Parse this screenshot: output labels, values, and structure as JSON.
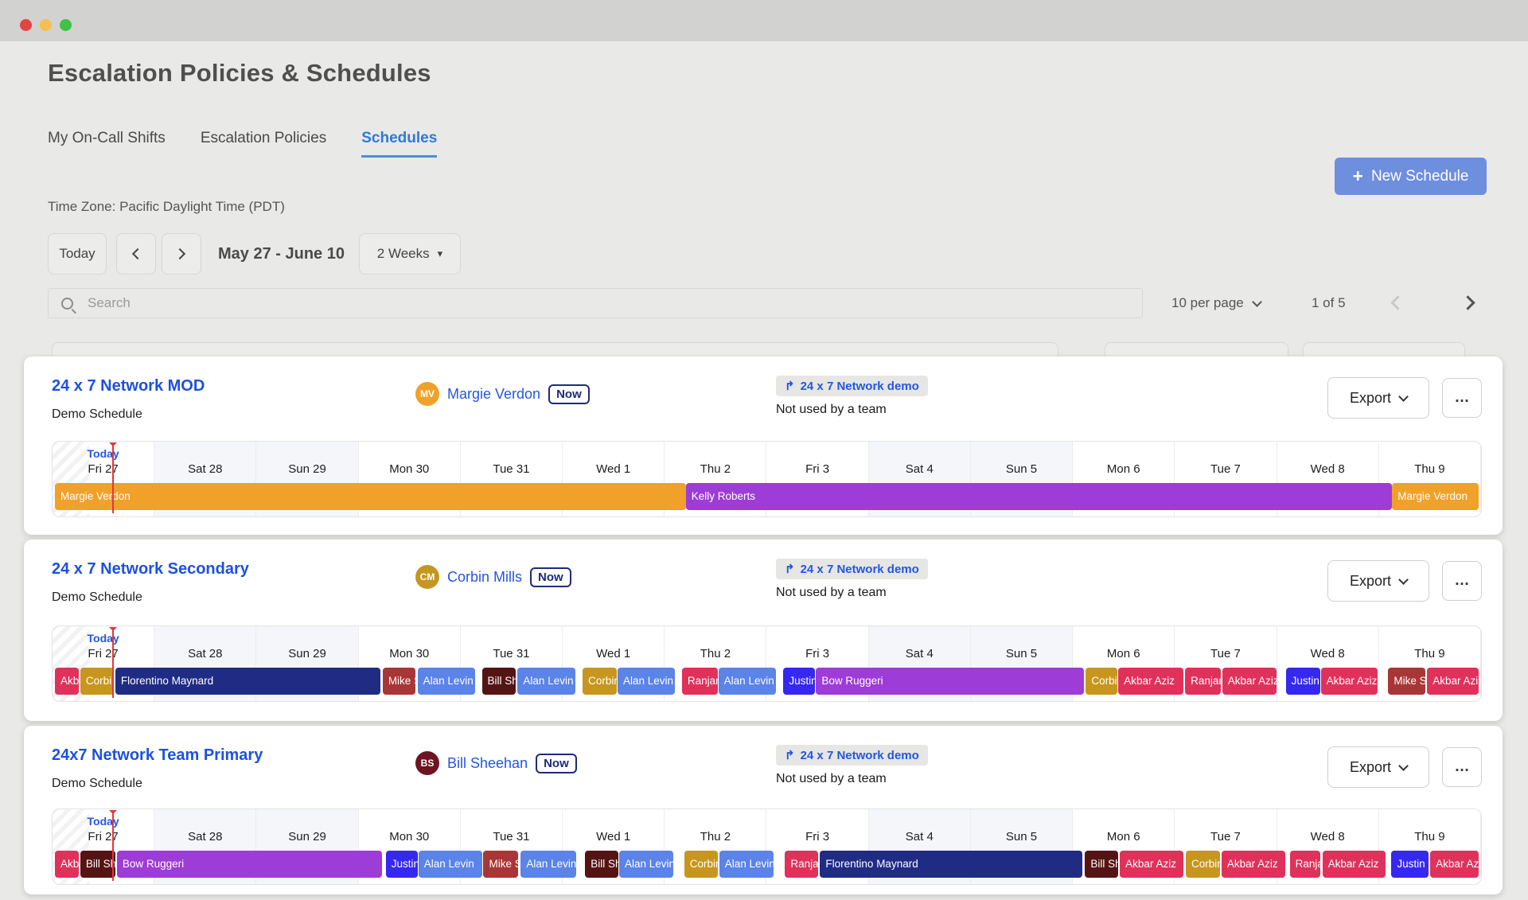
{
  "window": {
    "traffic_lights": [
      "#df4643",
      "#f6bf4f",
      "#3fc246"
    ]
  },
  "header": {
    "title": "Escalation Policies & Schedules"
  },
  "tabs": [
    {
      "label": "My On-Call Shifts",
      "active": false
    },
    {
      "label": "Escalation Policies",
      "active": false
    },
    {
      "label": "Schedules",
      "active": true
    }
  ],
  "actions": {
    "new_schedule_label": "New Schedule"
  },
  "icons": {
    "plus": "+",
    "ellipsis": "…",
    "escalation_arrow": "↱",
    "dropdown_caret": "▾"
  },
  "timezone_label": "Time Zone: Pacific Daylight Time (PDT)",
  "date_nav": {
    "today_label": "Today",
    "range_label": "May 27 - June 10",
    "period_label": "2 Weeks"
  },
  "search": {
    "placeholder": "Search"
  },
  "pagination": {
    "per_page_label": "10 per page",
    "page_status": "1 of 5"
  },
  "colors": {
    "link_blue": "#2356e6",
    "accent_button": "#6e8ede",
    "today_red": "#e5353b",
    "weekend_tint": "#f5f6f9"
  },
  "palette": {
    "orange": "#f0a12a",
    "purple": "#9d3cd6",
    "crimson": "#e0315b",
    "mustard": "#c7961f",
    "navy": "#202c84",
    "dark_red": "#a93636",
    "blue": "#5b83e8",
    "maroon": "#551414",
    "indigo": "#3528f0"
  },
  "timeline": {
    "columns": [
      "Fri 27",
      "Sat 28",
      "Sun 29",
      "Mon 30",
      "Tue 31",
      "Wed 1",
      "Thu 2",
      "Fri 3",
      "Sat 4",
      "Sun 5",
      "Mon 6",
      "Tue 7",
      "Wed 8",
      "Thu 9"
    ],
    "weekend_columns": [
      1,
      2,
      8,
      9
    ],
    "today_label": "Today",
    "today_line_pct": 4.0
  },
  "schedules": [
    {
      "name": "24 x 7 Network MOD",
      "subtitle": "Demo Schedule",
      "oncall": {
        "initials": "MV",
        "avatar_color": "#f0a12a",
        "name": "Margie Verdon",
        "now_label": "Now"
      },
      "escalation": {
        "label": "24 x 7 Network demo",
        "note": "Not used by a team"
      },
      "export_label": "Export",
      "segments": [
        {
          "label": "Margie Verdon",
          "color": "orange",
          "start": 0,
          "width": 44.31
        },
        {
          "label": "Kelly Roberts",
          "color": "purple",
          "start": 44.31,
          "width": 49.61
        },
        {
          "label": "Margie Verdon",
          "color": "orange",
          "start": 93.92,
          "width": 6.08
        }
      ]
    },
    {
      "name": "24 x 7 Network Secondary",
      "subtitle": "Demo Schedule",
      "oncall": {
        "initials": "CM",
        "avatar_color": "#c7961f",
        "name": "Corbin Mills",
        "now_label": "Now"
      },
      "escalation": {
        "label": "24 x 7 Network demo",
        "note": "Not used by a team"
      },
      "export_label": "Export",
      "segments": [
        {
          "label": "Akbar Aziz",
          "color": "crimson",
          "start": 0,
          "width": 1.67
        },
        {
          "label": "Corbin Mills",
          "color": "mustard",
          "start": 1.78,
          "width": 2.34
        },
        {
          "label": "Florentino Maynard",
          "color": "navy",
          "start": 4.24,
          "width": 18.62
        },
        {
          "label": "Mike Sn",
          "color": "dark_red",
          "start": 23.02,
          "width": 2.29
        },
        {
          "label": "Alan Levin",
          "color": "blue",
          "start": 25.47,
          "width": 4.07
        },
        {
          "label": "Bill Sheehan",
          "color": "maroon",
          "start": 29.99,
          "width": 2.4
        },
        {
          "label": "Alan Levin",
          "color": "blue",
          "start": 32.5,
          "width": 4.07
        },
        {
          "label": "Corbin Mills",
          "color": "mustard",
          "start": 37.07,
          "width": 2.4
        },
        {
          "label": "Alan Levin",
          "color": "blue",
          "start": 39.52,
          "width": 4.01
        },
        {
          "label": "Ranjan",
          "color": "crimson",
          "start": 44.04,
          "width": 2.51
        },
        {
          "label": "Alan Levin",
          "color": "blue",
          "start": 46.6,
          "width": 4.07
        },
        {
          "label": "Justin B",
          "color": "indigo",
          "start": 51.17,
          "width": 2.23
        },
        {
          "label": "Bow Ruggeri",
          "color": "purple",
          "start": 53.46,
          "width": 18.84
        },
        {
          "label": "Corbin Mills",
          "color": "mustard",
          "start": 72.41,
          "width": 2.23
        },
        {
          "label": "Akbar Aziz",
          "color": "crimson",
          "start": 74.69,
          "width": 4.57
        },
        {
          "label": "Ranjan",
          "color": "crimson",
          "start": 79.38,
          "width": 2.51
        },
        {
          "label": "Akbar Aziz",
          "color": "crimson",
          "start": 81.99,
          "width": 3.79
        },
        {
          "label": "Justin B",
          "color": "indigo",
          "start": 86.45,
          "width": 2.4
        },
        {
          "label": "Akbar Aziz",
          "color": "crimson",
          "start": 88.91,
          "width": 4.01
        },
        {
          "label": "Mike Sn",
          "color": "dark_red",
          "start": 93.65,
          "width": 2.62
        },
        {
          "label": "Akbar Aziz",
          "color": "crimson",
          "start": 96.38,
          "width": 3.62
        }
      ]
    },
    {
      "name": "24x7 Network Team Primary",
      "subtitle": "Demo Schedule",
      "oncall": {
        "initials": "BS",
        "avatar_color": "#6e1420",
        "name": "Bill Sheehan",
        "now_label": "Now"
      },
      "escalation": {
        "label": "24 x 7 Network demo",
        "note": "Not used by a team"
      },
      "export_label": "Export",
      "segments": [
        {
          "label": "Akbar Aziz",
          "color": "crimson",
          "start": 0,
          "width": 1.67
        },
        {
          "label": "Bill Sheehan",
          "color": "maroon",
          "start": 1.78,
          "width": 2.45
        },
        {
          "label": "Bow Ruggeri",
          "color": "purple",
          "start": 4.35,
          "width": 18.62
        },
        {
          "label": "Justin B",
          "color": "indigo",
          "start": 23.24,
          "width": 2.23
        },
        {
          "label": "Alan Levin",
          "color": "blue",
          "start": 25.53,
          "width": 4.46
        },
        {
          "label": "Mike Sn",
          "color": "dark_red",
          "start": 30.1,
          "width": 2.45
        },
        {
          "label": "Alan Levin",
          "color": "blue",
          "start": 32.72,
          "width": 3.9
        },
        {
          "label": "Bill Sheehan",
          "color": "maroon",
          "start": 37.24,
          "width": 2.34
        },
        {
          "label": "Alan Levin",
          "color": "blue",
          "start": 39.63,
          "width": 3.79
        },
        {
          "label": "Corbin Mills",
          "color": "mustard",
          "start": 44.2,
          "width": 2.34
        },
        {
          "label": "Alan Levin",
          "color": "blue",
          "start": 46.66,
          "width": 3.79
        },
        {
          "label": "Ranjan",
          "color": "crimson",
          "start": 51.28,
          "width": 2.34
        },
        {
          "label": "Florentino Maynard",
          "color": "navy",
          "start": 53.74,
          "width": 18.45
        },
        {
          "label": "Bill Sheehan",
          "color": "maroon",
          "start": 72.35,
          "width": 2.34
        },
        {
          "label": "Akbar Aziz",
          "color": "crimson",
          "start": 74.8,
          "width": 4.46
        },
        {
          "label": "Corbin Mills",
          "color": "mustard",
          "start": 79.43,
          "width": 2.4
        },
        {
          "label": "Akbar Aziz",
          "color": "crimson",
          "start": 81.94,
          "width": 4.46
        },
        {
          "label": "Ranjan",
          "color": "crimson",
          "start": 86.73,
          "width": 2.17
        },
        {
          "label": "Akbar Aziz",
          "color": "crimson",
          "start": 89.02,
          "width": 4.46
        },
        {
          "label": "Justin B",
          "color": "indigo",
          "start": 93.87,
          "width": 2.62
        },
        {
          "label": "Akbar Aziz",
          "color": "crimson",
          "start": 96.6,
          "width": 3.4
        }
      ]
    }
  ]
}
